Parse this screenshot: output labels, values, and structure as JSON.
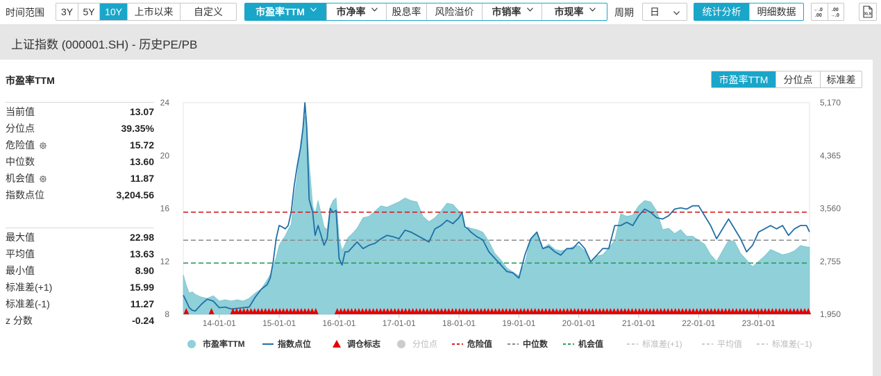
{
  "toolbar": {
    "range_label": "时间范围",
    "range_buttons": [
      "3Y",
      "5Y",
      "10Y",
      "上市以来",
      "自定义"
    ],
    "metric_buttons": [
      "市盈率TTM",
      "市净率",
      "股息率",
      "风险溢价",
      "市销率",
      "市现率"
    ],
    "period_label": "周期",
    "period_value": "日",
    "view_buttons": [
      "统计分析",
      "明细数据"
    ],
    "decimal_increase_label": "←.0\n.00",
    "decimal_decrease_label": ".00\n→.0",
    "export_icon_label": "XLS"
  },
  "title": "上证指数 (000001.SH) - 历史PE/PB",
  "panel": {
    "title": "市盈率TTM",
    "seg_buttons": [
      "市盈率TTM",
      "分位点",
      "标准差"
    ]
  },
  "stats_top": [
    {
      "label": "当前值",
      "value": "13.07"
    },
    {
      "label": "分位点",
      "value": "39.35%"
    },
    {
      "label": "危险值",
      "value": "15.72",
      "gear": true
    },
    {
      "label": "中位数",
      "value": "13.60"
    },
    {
      "label": "机会值",
      "value": "11.87",
      "gear": true
    },
    {
      "label": "指数点位",
      "value": "3,204.56"
    }
  ],
  "stats_bottom": [
    {
      "label": "最大值",
      "value": "22.98"
    },
    {
      "label": "平均值",
      "value": "13.63"
    },
    {
      "label": "最小值",
      "value": "8.90"
    },
    {
      "label": "标准差(+1)",
      "value": "15.99"
    },
    {
      "label": "标准差(-1)",
      "value": "11.27"
    },
    {
      "label": "z 分数",
      "value": "-0.24"
    }
  ],
  "chart_data": {
    "type": "area",
    "x_tick_labels": [
      "14-01-01",
      "15-01-01",
      "16-01-01",
      "17-01-01",
      "18-01-01",
      "19-01-01",
      "20-01-01",
      "21-01-01",
      "22-01-01",
      "23-01-01"
    ],
    "x_range": [
      2013.4,
      2023.85
    ],
    "y_left": {
      "ticks": [
        8,
        12,
        16,
        20,
        24
      ],
      "range": [
        8,
        24
      ]
    },
    "y_right": {
      "ticks": [
        "1,950",
        "2,755",
        "3,560",
        "4,365",
        "5,170"
      ],
      "range": [
        1950,
        5170
      ]
    },
    "grid": false,
    "legend_position": "bottom",
    "colors": {
      "pe_fill": "#8fd0d9",
      "index_line": "#1f6fa6",
      "marker": "#e60000",
      "danger": "#d42020",
      "median": "#888888",
      "opportunity": "#2a9d5a",
      "legend_disabled": "#cccccc"
    },
    "reference_lines": [
      {
        "name": "危险值",
        "value": 15.72
      },
      {
        "name": "中位数",
        "value": 13.6
      },
      {
        "name": "机会值",
        "value": 11.87
      }
    ],
    "series": [
      {
        "name": "市盈率TTM",
        "axis": "left",
        "x": [
          2013.4,
          2013.45,
          2013.5,
          2013.55,
          2013.6,
          2013.7,
          2013.8,
          2013.9,
          2014.0,
          2014.1,
          2014.2,
          2014.3,
          2014.4,
          2014.5,
          2014.6,
          2014.7,
          2014.8,
          2014.85,
          2014.9,
          2014.95,
          2015.0,
          2015.05,
          2015.1,
          2015.15,
          2015.2,
          2015.25,
          2015.3,
          2015.33,
          2015.36,
          2015.4,
          2015.43,
          2015.46,
          2015.5,
          2015.53,
          2015.56,
          2015.6,
          2015.65,
          2015.7,
          2015.75,
          2015.8,
          2015.85,
          2015.9,
          2015.95,
          2016.0,
          2016.05,
          2016.1,
          2016.15,
          2016.2,
          2016.3,
          2016.4,
          2016.5,
          2016.6,
          2016.7,
          2016.8,
          2016.9,
          2017.0,
          2017.1,
          2017.2,
          2017.3,
          2017.4,
          2017.5,
          2017.6,
          2017.7,
          2017.8,
          2017.9,
          2018.0,
          2018.05,
          2018.1,
          2018.15,
          2018.2,
          2018.3,
          2018.4,
          2018.5,
          2018.6,
          2018.7,
          2018.8,
          2018.9,
          2019.0,
          2019.1,
          2019.2,
          2019.3,
          2019.4,
          2019.5,
          2019.6,
          2019.7,
          2019.8,
          2019.9,
          2020.0,
          2020.1,
          2020.2,
          2020.3,
          2020.4,
          2020.5,
          2020.6,
          2020.7,
          2020.8,
          2020.9,
          2021.0,
          2021.1,
          2021.2,
          2021.3,
          2021.4,
          2021.5,
          2021.6,
          2021.7,
          2021.8,
          2021.9,
          2022.0,
          2022.1,
          2022.2,
          2022.3,
          2022.4,
          2022.5,
          2022.6,
          2022.7,
          2022.8,
          2022.9,
          2023.0,
          2023.1,
          2023.2,
          2023.3,
          2023.4,
          2023.5,
          2023.6,
          2023.7,
          2023.8,
          2023.85
        ],
        "values": [
          11.0,
          10.2,
          9.6,
          9.7,
          9.5,
          9.3,
          9.2,
          9.4,
          9.0,
          9.1,
          9.0,
          9.1,
          9.0,
          9.2,
          9.6,
          9.9,
          10.6,
          11.0,
          11.6,
          12.3,
          13.2,
          13.6,
          13.9,
          14.4,
          14.8,
          16.8,
          18.4,
          19.8,
          21.0,
          22.2,
          22.98,
          22.5,
          19.4,
          17.8,
          16.2,
          15.6,
          16.6,
          15.6,
          14.6,
          14.4,
          16.1,
          16.6,
          16.8,
          13.8,
          12.8,
          13.3,
          13.8,
          14.0,
          14.5,
          15.3,
          15.4,
          15.8,
          16.2,
          16.1,
          16.3,
          16.5,
          16.8,
          16.6,
          16.5,
          15.4,
          15.0,
          15.3,
          15.8,
          16.4,
          16.3,
          15.8,
          15.4,
          14.4,
          14.6,
          14.5,
          14.4,
          14.2,
          13.5,
          12.6,
          12.1,
          11.5,
          11.2,
          10.9,
          11.9,
          13.7,
          14.2,
          13.0,
          13.3,
          12.9,
          12.8,
          12.9,
          13.1,
          13.2,
          12.8,
          12.0,
          12.4,
          12.5,
          13.0,
          13.6,
          15.6,
          15.4,
          15.5,
          16.2,
          16.6,
          16.5,
          15.8,
          14.4,
          14.5,
          14.1,
          14.4,
          13.9,
          13.9,
          13.6,
          13.3,
          12.5,
          12.0,
          12.8,
          13.6,
          13.5,
          12.6,
          12.1,
          11.6,
          12.0,
          12.4,
          12.9,
          12.7,
          12.5,
          12.6,
          12.8,
          13.2,
          13.1,
          13.07
        ]
      },
      {
        "name": "指数点位",
        "axis": "right",
        "x": [
          2013.4,
          2013.45,
          2013.5,
          2013.55,
          2013.6,
          2013.7,
          2013.8,
          2013.9,
          2014.0,
          2014.1,
          2014.2,
          2014.3,
          2014.4,
          2014.5,
          2014.6,
          2014.7,
          2014.8,
          2014.85,
          2014.9,
          2014.95,
          2015.0,
          2015.05,
          2015.1,
          2015.15,
          2015.2,
          2015.25,
          2015.3,
          2015.33,
          2015.36,
          2015.4,
          2015.43,
          2015.46,
          2015.5,
          2015.53,
          2015.56,
          2015.6,
          2015.65,
          2015.7,
          2015.75,
          2015.8,
          2015.85,
          2015.9,
          2015.95,
          2016.0,
          2016.05,
          2016.1,
          2016.15,
          2016.2,
          2016.3,
          2016.4,
          2016.5,
          2016.6,
          2016.7,
          2016.8,
          2016.9,
          2017.0,
          2017.1,
          2017.2,
          2017.3,
          2017.4,
          2017.5,
          2017.6,
          2017.7,
          2017.8,
          2017.9,
          2018.0,
          2018.05,
          2018.1,
          2018.15,
          2018.2,
          2018.3,
          2018.4,
          2018.5,
          2018.6,
          2018.7,
          2018.8,
          2018.9,
          2019.0,
          2019.1,
          2019.2,
          2019.3,
          2019.4,
          2019.5,
          2019.6,
          2019.7,
          2019.8,
          2019.9,
          2020.0,
          2020.1,
          2020.2,
          2020.3,
          2020.4,
          2020.5,
          2020.6,
          2020.7,
          2020.8,
          2020.9,
          2021.0,
          2021.1,
          2021.2,
          2021.3,
          2021.4,
          2021.5,
          2021.6,
          2021.7,
          2021.8,
          2021.9,
          2022.0,
          2022.1,
          2022.2,
          2022.3,
          2022.4,
          2022.5,
          2022.6,
          2022.7,
          2022.8,
          2022.9,
          2023.0,
          2023.1,
          2023.2,
          2023.3,
          2023.4,
          2023.5,
          2023.6,
          2023.7,
          2023.8,
          2023.85
        ],
        "values": [
          2240,
          2150,
          2050,
          2010,
          2000,
          2100,
          2180,
          2150,
          2050,
          2060,
          2030,
          2040,
          2050,
          2060,
          2210,
          2330,
          2400,
          2500,
          2750,
          3100,
          3300,
          3280,
          3250,
          3300,
          3500,
          3900,
          4200,
          4350,
          4500,
          4800,
          5170,
          4800,
          3700,
          3600,
          3500,
          3150,
          3300,
          3150,
          3000,
          3100,
          3560,
          3500,
          3530,
          2800,
          2700,
          2900,
          2900,
          2950,
          3050,
          2950,
          3000,
          3030,
          3100,
          3150,
          3130,
          3100,
          3230,
          3200,
          3150,
          3100,
          3050,
          3250,
          3300,
          3380,
          3330,
          3420,
          3500,
          3280,
          3250,
          3200,
          3130,
          3080,
          2900,
          2800,
          2700,
          2600,
          2580,
          2500,
          2850,
          3100,
          3200,
          2950,
          2980,
          2900,
          2850,
          2950,
          2950,
          3050,
          2950,
          2750,
          2850,
          2950,
          2950,
          3300,
          3300,
          3350,
          3300,
          3450,
          3550,
          3500,
          3420,
          3400,
          3450,
          3550,
          3570,
          3550,
          3600,
          3600,
          3450,
          3300,
          3100,
          3250,
          3400,
          3250,
          3100,
          2900,
          3000,
          3200,
          3250,
          3300,
          3250,
          3300,
          3150,
          3250,
          3300,
          3300,
          3204.56
        ]
      }
    ],
    "legend": [
      {
        "label": "市盈率TTM",
        "marker": "circle",
        "color": "#8fd0d9",
        "enabled": true
      },
      {
        "label": "指数点位",
        "marker": "line",
        "color": "#1f6fa6",
        "enabled": true
      },
      {
        "label": "调仓标志",
        "marker": "triangle",
        "color": "#e60000",
        "enabled": true
      },
      {
        "label": "分位点",
        "marker": "circle",
        "color": "#cccccc",
        "enabled": false
      },
      {
        "label": "危险值",
        "marker": "dash",
        "color": "#d42020",
        "enabled": true
      },
      {
        "label": "中位数",
        "marker": "dash",
        "color": "#888888",
        "enabled": true
      },
      {
        "label": "机会值",
        "marker": "dash",
        "color": "#2a9d5a",
        "enabled": true
      },
      {
        "label": "标准差(+1)",
        "marker": "dash",
        "color": "#cccccc",
        "enabled": false
      },
      {
        "label": "平均值",
        "marker": "dash",
        "color": "#cccccc",
        "enabled": false
      },
      {
        "label": "标准差(−1)",
        "marker": "dash",
        "color": "#cccccc",
        "enabled": false
      }
    ]
  }
}
